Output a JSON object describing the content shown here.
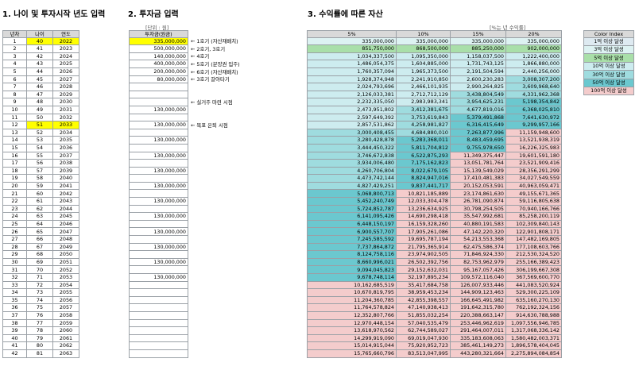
{
  "titles": {
    "s1": "1. 나이 및 투자시작 년도 입력",
    "s2": "2. 투자금 입력",
    "s3": "3. 수익률에 따른 자산"
  },
  "unit_note": "[단위 : 원]",
  "rate_note": "[%는 년 수익률]",
  "t1": {
    "headers": [
      "년차",
      "나이",
      "연도"
    ],
    "highlight_rows": [
      1,
      12
    ]
  },
  "t2": {
    "header": "투자금(원금)",
    "values": {
      "1": "335,000,000",
      "2": "500,000,000",
      "3": "140,000,000",
      "4": "400,000,000",
      "5": "200,000,000",
      "6": "80,000,000",
      "10": "130,000,000",
      "12": "130,000,000",
      "14": "130,000,000",
      "16": "130,000,000",
      "18": "130,000,000",
      "20": "130,000,000",
      "22": "130,000,000",
      "24": "130,000,000",
      "26": "130,000,000",
      "28": "130,000,000",
      "30": "130,000,000",
      "32": "130,000,000"
    },
    "annotations": {
      "1": "← 1호기 (자산재배치)",
      "2": "← 2호기, 3호기",
      "3": "← 4호기",
      "4": "← 5호기 (분양권 입주)",
      "5": "← 6호기 (자산재배치)",
      "6": "← 3호기 갈아타기",
      "9": "← 실거주 마련 시점",
      "12": "← 목표 은퇴 시점"
    }
  },
  "t3": {
    "headers": [
      "5%",
      "10%",
      "15%",
      "20%"
    ],
    "rows": [
      [
        "335,000,000",
        "335,000,000",
        "335,000,000",
        "335,000,000"
      ],
      [
        "851,750,000",
        "868,500,000",
        "885,250,000",
        "902,000,000"
      ],
      [
        "1,034,337,500",
        "1,095,350,000",
        "1,158,037,500",
        "1,222,400,000"
      ],
      [
        "1,486,054,375",
        "1,604,885,000",
        "1,731,743,125",
        "1,866,880,000"
      ],
      [
        "1,760,357,094",
        "1,965,373,500",
        "2,191,504,594",
        "2,440,256,000"
      ],
      [
        "1,928,374,948",
        "2,241,910,850",
        "2,600,230,283",
        "3,008,307,200"
      ],
      [
        "2,024,793,696",
        "2,466,101,935",
        "2,990,264,825",
        "3,609,968,640"
      ],
      [
        "2,126,033,381",
        "2,712,712,129",
        "3,438,804,549",
        "4,331,962,368"
      ],
      [
        "2,232,335,050",
        "2,983,983,341",
        "3,954,625,231",
        "5,198,354,842"
      ],
      [
        "2,473,951,802",
        "3,412,381,675",
        "4,677,819,016",
        "6,368,025,810"
      ],
      [
        "2,597,649,392",
        "3,753,619,843",
        "5,379,491,868",
        "7,641,630,972"
      ],
      [
        "2,857,531,862",
        "4,258,981,827",
        "6,316,415,649",
        "9,299,957,166"
      ],
      [
        "3,000,408,455",
        "4,684,880,010",
        "7,263,877,996",
        "11,159,948,600"
      ],
      [
        "3,280,428,878",
        "5,283,368,011",
        "8,483,459,695",
        "13,521,938,319"
      ],
      [
        "3,444,450,322",
        "5,811,704,812",
        "9,755,978,650",
        "16,226,325,983"
      ],
      [
        "3,746,672,838",
        "6,522,875,293",
        "11,349,375,447",
        "19,601,591,180"
      ],
      [
        "3,934,006,480",
        "7,175,162,823",
        "13,051,781,764",
        "23,521,909,416"
      ],
      [
        "4,260,706,804",
        "8,022,679,105",
        "15,139,549,029",
        "28,356,291,299"
      ],
      [
        "4,473,742,144",
        "8,824,947,016",
        "17,410,481,383",
        "34,027,549,559"
      ],
      [
        "4,827,429,251",
        "9,837,441,717",
        "20,152,053,591",
        "40,963,059,471"
      ],
      [
        "5,068,800,713",
        "10,821,185,889",
        "23,174,861,630",
        "49,155,671,365"
      ],
      [
        "5,452,240,749",
        "12,033,304,478",
        "26,781,090,874",
        "59,116,805,638"
      ],
      [
        "5,724,852,787",
        "13,236,634,925",
        "30,798,254,505",
        "70,940,166,766"
      ],
      [
        "6,141,095,426",
        "14,690,298,418",
        "35,547,992,681",
        "85,258,200,119"
      ],
      [
        "6,448,150,197",
        "16,159,328,260",
        "40,880,191,583",
        "102,309,840,143"
      ],
      [
        "6,900,557,707",
        "17,905,261,086",
        "47,142,220,320",
        "122,901,808,171"
      ],
      [
        "7,245,585,592",
        "19,695,787,194",
        "54,213,553,368",
        "147,482,169,805"
      ],
      [
        "7,737,864,872",
        "21,795,365,914",
        "62,475,586,374",
        "177,108,603,766"
      ],
      [
        "8,124,758,116",
        "23,974,902,505",
        "71,846,924,330",
        "212,530,324,520"
      ],
      [
        "8,660,996,021",
        "26,502,392,756",
        "82,753,962,979",
        "255,166,389,423"
      ],
      [
        "9,094,045,823",
        "29,152,632,031",
        "95,167,057,426",
        "306,199,667,308"
      ],
      [
        "9,678,748,114",
        "32,197,895,234",
        "109,572,116,040",
        "367,569,600,770"
      ],
      [
        "10,162,685,519",
        "35,417,684,758",
        "126,007,933,446",
        "441,083,520,924"
      ],
      [
        "10,670,819,795",
        "38,959,453,234",
        "144,909,123,463",
        "529,300,225,109"
      ],
      [
        "11,204,360,785",
        "42,855,398,557",
        "166,645,491,982",
        "635,160,270,130"
      ],
      [
        "11,764,578,824",
        "47,140,938,413",
        "191,642,315,780",
        "762,192,324,156"
      ],
      [
        "12,352,807,766",
        "51,855,032,254",
        "220,388,663,147",
        "914,630,788,988"
      ],
      [
        "12,970,448,154",
        "57,040,535,479",
        "253,446,962,619",
        "1,097,556,946,785"
      ],
      [
        "13,618,970,562",
        "62,744,589,027",
        "291,464,007,011",
        "1,317,068,336,142"
      ],
      [
        "14,299,919,090",
        "69,019,047,930",
        "335,183,608,063",
        "1,580,482,003,371"
      ],
      [
        "15,014,915,044",
        "75,920,952,723",
        "385,461,149,273",
        "1,896,578,404,045"
      ],
      [
        "15,765,660,796",
        "83,513,047,995",
        "443,280,321,664",
        "2,275,894,084,854"
      ]
    ]
  },
  "legend": {
    "title": "Color Index",
    "items": [
      "1억 이상 달성",
      "3억 이상 달성",
      "5억 이상 달성",
      "10억 이상 달성",
      "30억 이상 달성",
      "50억 이상 달성",
      "100억 이상 달성"
    ]
  }
}
